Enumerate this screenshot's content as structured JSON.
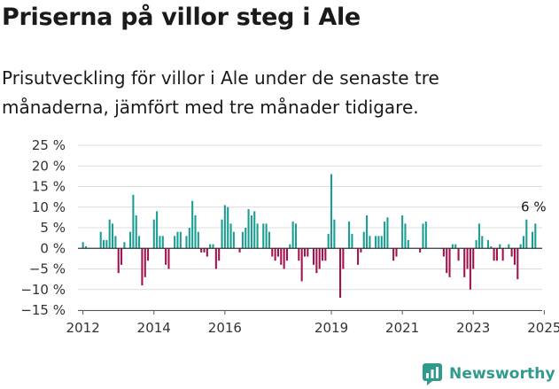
{
  "title": "Priserna på villor steg i Ale",
  "subtitle": "Prisutveckling för villor i Ale under de senaste tre månaderna, jämfört med tre månader tidigare.",
  "brand": {
    "name": "Newsworthy",
    "icon": "newsworthy-logo-icon",
    "color": "#2f9b8c"
  },
  "colors": {
    "positive": "#1a9e92",
    "negative": "#a3114f",
    "grid": "#dcdcdc",
    "zero_line": "#333333"
  },
  "chart_data": {
    "type": "bar",
    "title": "",
    "xlabel": "",
    "ylabel": "",
    "ylim": [
      -15,
      25
    ],
    "yticks": [
      -15,
      -10,
      -5,
      0,
      5,
      10,
      15,
      20,
      25
    ],
    "ytick_labels": [
      "−15 %",
      "−10 %",
      "−5 %",
      "0 %",
      "5 %",
      "10 %",
      "15 %",
      "20 %",
      "25 %"
    ],
    "xticks": [
      2012,
      2014,
      2016,
      2019,
      2021,
      2023,
      2025
    ],
    "xtick_labels": [
      "2012",
      "2014",
      "2016",
      "2019",
      "2021",
      "2023",
      "2025"
    ],
    "x_start": "2012-01",
    "grid": true,
    "annotation": {
      "text": "6 %",
      "value": 6
    },
    "values": [
      1.5,
      0.5,
      0,
      0,
      0,
      0,
      4,
      2,
      2,
      7,
      6,
      3,
      -6,
      -4,
      1.5,
      0,
      4,
      13,
      8,
      3,
      -9,
      -7,
      -3,
      0,
      7,
      9,
      3,
      3,
      -4,
      -5,
      0,
      3,
      4,
      4,
      0,
      3,
      5,
      11.5,
      8,
      4,
      -1,
      -1,
      -2,
      1,
      1,
      -5,
      -3,
      7,
      10.5,
      10,
      6,
      4,
      0,
      -1,
      4,
      5,
      9.5,
      8,
      9,
      6,
      0,
      6,
      6,
      4,
      -2,
      -3,
      -2,
      -4,
      -5,
      -3,
      1,
      6.5,
      6,
      -3,
      -8,
      -2,
      -2,
      0,
      -4,
      -6,
      -5,
      -3,
      -3,
      3.5,
      18,
      7,
      0,
      -12,
      -5,
      0,
      6.5,
      3.5,
      0,
      -4,
      -1,
      4,
      8,
      3,
      0,
      3,
      3,
      3,
      6.5,
      7.5,
      0,
      -3,
      -2,
      0,
      8,
      6,
      2,
      0,
      0,
      0,
      -1,
      6,
      6.5,
      0,
      0,
      0,
      0,
      0,
      -2,
      -6,
      -7,
      1,
      1,
      -3,
      0,
      -7,
      -5,
      -10,
      -5,
      2,
      6,
      3,
      0,
      2,
      0.5,
      -3,
      -3,
      1,
      -3,
      0,
      1,
      -2,
      -4,
      -7.5,
      1,
      3,
      7,
      0,
      4,
      6
    ]
  }
}
